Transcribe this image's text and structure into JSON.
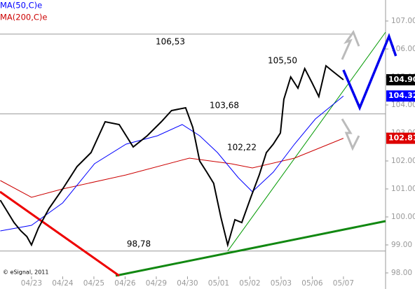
{
  "chart_data": {
    "type": "line",
    "xlim": [
      -1.01,
      11.35
    ],
    "ylim": [
      97.425,
      107.75
    ],
    "xticks": [
      {
        "value": 0,
        "label": "04/23"
      },
      {
        "value": 1,
        "label": "04/24"
      },
      {
        "value": 2,
        "label": "04/25"
      },
      {
        "value": 3,
        "label": "04/26"
      },
      {
        "value": 4,
        "label": "04/29"
      },
      {
        "value": 5,
        "label": "04/30"
      },
      {
        "value": 6,
        "label": "05/01"
      },
      {
        "value": 7,
        "label": "05/02"
      },
      {
        "value": 8,
        "label": "05/03"
      },
      {
        "value": 9,
        "label": "05/06"
      },
      {
        "value": 10,
        "label": "05/07"
      }
    ],
    "yticks": [
      {
        "value": 98,
        "label": "98.00"
      },
      {
        "value": 99,
        "label": "99.00"
      },
      {
        "value": 100,
        "label": "100.00"
      },
      {
        "value": 101,
        "label": "101.00"
      },
      {
        "value": 102,
        "label": "102.00"
      },
      {
        "value": 103,
        "label": "103.00"
      },
      {
        "value": 104,
        "label": "104.00"
      },
      {
        "value": 105,
        "label": "105.00"
      },
      {
        "value": 106,
        "label": "106.00"
      },
      {
        "value": 107,
        "label": "107.00"
      }
    ],
    "series": [
      {
        "color": "#000000",
        "x": [
          -1.0,
          -0.78,
          -0.56,
          -0.34,
          -0.15,
          0,
          0.22,
          0.56,
          1.0,
          1.46,
          1.91,
          2.36,
          2.81,
          3.26,
          3.71,
          4.16,
          4.49,
          4.94,
          5.17,
          5.39,
          5.62,
          5.84,
          6.07,
          6.29,
          6.52,
          6.74,
          7.03,
          7.3,
          7.53,
          7.75,
          7.98,
          8.09,
          8.31,
          8.54,
          8.76,
          8.99,
          9.21,
          9.44,
          9.66,
          10.0
        ],
        "values": [
          100.6,
          100.2,
          99.8,
          99.5,
          99.3,
          99.0,
          99.6,
          100.3,
          101.0,
          101.8,
          102.3,
          103.4,
          103.3,
          102.5,
          102.9,
          103.4,
          103.8,
          103.9,
          103.2,
          102.0,
          101.6,
          101.2,
          100.0,
          99.0,
          99.9,
          99.8,
          100.7,
          101.5,
          102.3,
          102.6,
          103.0,
          104.2,
          105.0,
          104.6,
          105.3,
          104.8,
          104.3,
          105.4,
          105.2,
          104.9
        ]
      },
      {
        "name": "MA(50,C)e",
        "color": "#0000ff",
        "x": [
          -1.0,
          0,
          1.0,
          2.02,
          3.03,
          4.04,
          4.83,
          5.39,
          5.96,
          6.63,
          7.08,
          7.75,
          8.43,
          9.1,
          10.0
        ],
        "values": [
          99.5,
          99.7,
          100.5,
          101.9,
          102.6,
          102.9,
          103.3,
          102.9,
          102.3,
          101.4,
          100.9,
          101.6,
          102.6,
          103.5,
          104.32
        ]
      },
      {
        "name": "MA(200,C)e",
        "color": "#cc0000",
        "x": [
          -1.0,
          0,
          1.0,
          3.03,
          5.06,
          6.4,
          7.08,
          8.43,
          10.0
        ],
        "values": [
          101.3,
          100.7,
          101.0,
          101.5,
          102.1,
          101.9,
          101.75,
          102.1,
          102.81
        ]
      }
    ],
    "trendlines": [
      {
        "color": "#009900",
        "width": 1,
        "x": [
          6.29,
          11.35
        ],
        "values": [
          98.78,
          106.6
        ]
      },
      {
        "color": "#118811",
        "width": 3,
        "x": [
          2.7,
          11.35
        ],
        "values": [
          97.9,
          99.85
        ]
      },
      {
        "color": "#ee0000",
        "width": 3,
        "x": [
          -1.01,
          2.81
        ],
        "values": [
          100.9,
          97.9
        ]
      },
      {
        "color": "#0000ee",
        "width": 3.5,
        "x": [
          10.0,
          10.52,
          11.46,
          11.68
        ],
        "values": [
          105.25,
          103.9,
          106.45,
          105.75
        ]
      }
    ],
    "annotations": [
      {
        "label": "106,53",
        "value": 106.53,
        "line": true
      },
      {
        "label": "103,68",
        "value": 103.68,
        "line": true
      },
      {
        "label": "102,22",
        "value": 102.22,
        "line": false
      },
      {
        "label": "105,50",
        "value": 105.5,
        "line": false
      },
      {
        "label": "98,78",
        "value": 98.78,
        "line": true
      }
    ],
    "last_values": [
      {
        "value": 104.9,
        "label": "104.90",
        "color": "#000000"
      },
      {
        "value": 104.32,
        "label": "104.32",
        "color": "#0000ff"
      },
      {
        "value": 102.81,
        "label": "102.81",
        "color": "#dd0000"
      }
    ],
    "copyright": "© eSignal, 2011"
  }
}
